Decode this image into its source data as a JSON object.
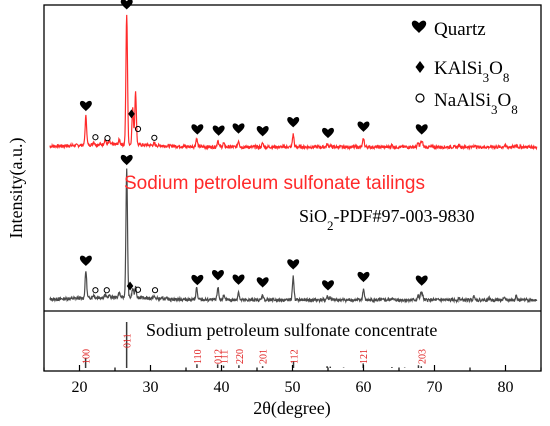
{
  "chart_data": {
    "type": "line",
    "xlabel": "2θ(degree)",
    "ylabel": "Intensity(a.u.)",
    "xlim": [
      15,
      85
    ],
    "xticks": [
      20,
      30,
      40,
      50,
      60,
      70,
      80
    ],
    "colors": {
      "tailings": "#ff2a2a",
      "concentrate": "#4a4a4a",
      "reference": "#3a3a3a",
      "hkl": "#e02020"
    },
    "legend": {
      "position": "top-right",
      "entries": [
        {
          "symbol": "heart",
          "label": "Quartz"
        },
        {
          "symbol": "diamond",
          "label": "KAlSi3O8"
        },
        {
          "symbol": "circle",
          "label": "NaAlSi3O8"
        }
      ]
    },
    "series": [
      {
        "name": "Sodium petroleum sulfonate tailings",
        "baseline": 0.55,
        "peaks": [
          {
            "x": 20.9,
            "h": 0.32
          },
          {
            "x": 22.0,
            "h": 0.03
          },
          {
            "x": 23.6,
            "h": 0.05
          },
          {
            "x": 24.2,
            "h": 0.03
          },
          {
            "x": 25.6,
            "h": 0.05
          },
          {
            "x": 26.65,
            "h": 1.45
          },
          {
            "x": 27.5,
            "h": 0.4
          },
          {
            "x": 27.9,
            "h": 0.58
          },
          {
            "x": 30.5,
            "h": 0.02
          },
          {
            "x": 36.5,
            "h": 0.09
          },
          {
            "x": 39.5,
            "h": 0.07
          },
          {
            "x": 40.3,
            "h": 0.04
          },
          {
            "x": 42.4,
            "h": 0.07
          },
          {
            "x": 45.8,
            "h": 0.04
          },
          {
            "x": 50.1,
            "h": 0.14
          },
          {
            "x": 54.9,
            "h": 0.03
          },
          {
            "x": 55.3,
            "h": 0.02
          },
          {
            "x": 60.0,
            "h": 0.09
          },
          {
            "x": 64.0,
            "h": 0.02
          },
          {
            "x": 67.7,
            "h": 0.04
          },
          {
            "x": 68.1,
            "h": 0.05
          },
          {
            "x": 68.3,
            "h": 0.04
          },
          {
            "x": 73.5,
            "h": 0.02
          },
          {
            "x": 75.6,
            "h": 0.02
          },
          {
            "x": 79.9,
            "h": 0.02
          },
          {
            "x": 81.5,
            "h": 0.02
          }
        ]
      },
      {
        "name": "Sodium petroleum sulfonate concentrate",
        "baseline": 0.0,
        "peaks": [
          {
            "x": 20.9,
            "h": 0.3
          },
          {
            "x": 22.0,
            "h": 0.03
          },
          {
            "x": 23.6,
            "h": 0.03
          },
          {
            "x": 24.2,
            "h": 0.02
          },
          {
            "x": 25.6,
            "h": 0.05
          },
          {
            "x": 26.65,
            "h": 1.42
          },
          {
            "x": 27.5,
            "h": 0.1
          },
          {
            "x": 27.9,
            "h": 0.13
          },
          {
            "x": 30.5,
            "h": 0.02
          },
          {
            "x": 36.5,
            "h": 0.13
          },
          {
            "x": 39.5,
            "h": 0.14
          },
          {
            "x": 40.3,
            "h": 0.05
          },
          {
            "x": 42.4,
            "h": 0.09
          },
          {
            "x": 45.8,
            "h": 0.06
          },
          {
            "x": 50.1,
            "h": 0.26
          },
          {
            "x": 54.9,
            "h": 0.04
          },
          {
            "x": 55.3,
            "h": 0.03
          },
          {
            "x": 60.0,
            "h": 0.12
          },
          {
            "x": 64.0,
            "h": 0.02
          },
          {
            "x": 67.7,
            "h": 0.05
          },
          {
            "x": 68.1,
            "h": 0.07
          },
          {
            "x": 68.3,
            "h": 0.05
          },
          {
            "x": 73.5,
            "h": 0.02
          },
          {
            "x": 75.6,
            "h": 0.05
          },
          {
            "x": 77.7,
            "h": 0.02
          },
          {
            "x": 79.9,
            "h": 0.02
          },
          {
            "x": 81.5,
            "h": 0.05
          }
        ]
      }
    ],
    "reference": {
      "name": "SiO2-PDF#97-003-9830",
      "lines": [
        {
          "x": 20.86,
          "h": 0.22,
          "hkl": "100"
        },
        {
          "x": 26.64,
          "h": 1.0,
          "hkl": "011"
        },
        {
          "x": 36.54,
          "h": 0.08,
          "hkl": "110"
        },
        {
          "x": 39.46,
          "h": 0.08,
          "hkl": "012"
        },
        {
          "x": 40.29,
          "h": 0.05,
          "hkl": "111"
        },
        {
          "x": 42.45,
          "h": 0.06,
          "hkl": "220"
        },
        {
          "x": 45.79,
          "h": 0.04,
          "hkl": "201"
        },
        {
          "x": 50.14,
          "h": 0.14,
          "hkl": "112"
        },
        {
          "x": 54.87,
          "h": 0.04,
          "hkl": ""
        },
        {
          "x": 55.32,
          "h": 0.03,
          "hkl": ""
        },
        {
          "x": 57.2,
          "h": 0.01,
          "hkl": ""
        },
        {
          "x": 59.96,
          "h": 0.1,
          "hkl": "121"
        },
        {
          "x": 64.0,
          "h": 0.02,
          "hkl": ""
        },
        {
          "x": 65.8,
          "h": 0.01,
          "hkl": ""
        },
        {
          "x": 67.74,
          "h": 0.06,
          "hkl": ""
        },
        {
          "x": 68.14,
          "h": 0.04,
          "hkl": "203"
        }
      ]
    },
    "markers": {
      "tailings": [
        {
          "x": 20.9,
          "symbol": "heart"
        },
        {
          "x": 22.1,
          "symbol": "circle"
        },
        {
          "x": 23.8,
          "symbol": "circle"
        },
        {
          "x": 26.65,
          "symbol": "heart"
        },
        {
          "x": 27.6,
          "symbol": "diamond"
        },
        {
          "x": 28.1,
          "symbol": "circle"
        },
        {
          "x": 30.4,
          "symbol": "circle"
        },
        {
          "x": 36.6,
          "symbol": "heart"
        },
        {
          "x": 39.6,
          "symbol": "heart"
        },
        {
          "x": 42.4,
          "symbol": "heart"
        },
        {
          "x": 45.8,
          "symbol": "heart"
        },
        {
          "x": 50.1,
          "symbol": "heart"
        },
        {
          "x": 55.0,
          "symbol": "heart"
        },
        {
          "x": 60.0,
          "symbol": "heart"
        },
        {
          "x": 68.2,
          "symbol": "heart"
        }
      ],
      "concentrate": [
        {
          "x": 20.9,
          "symbol": "heart"
        },
        {
          "x": 22.1,
          "symbol": "circle"
        },
        {
          "x": 23.7,
          "symbol": "circle"
        },
        {
          "x": 26.65,
          "symbol": "heart"
        },
        {
          "x": 27.4,
          "symbol": "diamond"
        },
        {
          "x": 28.1,
          "symbol": "circle"
        },
        {
          "x": 30.5,
          "symbol": "circle"
        },
        {
          "x": 36.6,
          "symbol": "heart"
        },
        {
          "x": 39.5,
          "symbol": "heart"
        },
        {
          "x": 42.4,
          "symbol": "heart"
        },
        {
          "x": 45.8,
          "symbol": "heart"
        },
        {
          "x": 50.1,
          "symbol": "heart"
        },
        {
          "x": 55.0,
          "symbol": "heart"
        },
        {
          "x": 60.0,
          "symbol": "heart"
        },
        {
          "x": 68.2,
          "symbol": "heart"
        }
      ]
    }
  }
}
